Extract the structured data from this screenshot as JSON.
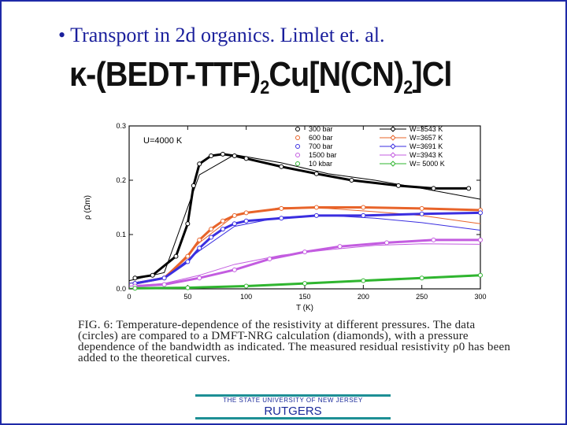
{
  "slide": {
    "title": "• Transport in 2d organics. Limlet et. al.",
    "formula_prefix": "κ-(BEDT-TTF)",
    "formula_sub1": "2",
    "formula_mid": "Cu[N(CN)",
    "formula_sub2": "2",
    "formula_suffix": "]Cl",
    "caption": "FIG. 6: Temperature-dependence of the resistivity at different pressures. The data (circles) are compared to a DMFT-NRG calculation (diamonds), with a pressure dependence of the bandwidth as indicated. The measured residual resistivity ρ0 has been added to the theoretical curves."
  },
  "footer": {
    "university": "THE STATE UNIVERSITY OF NEW JERSEY",
    "name": "RUTGERS"
  },
  "chart_data": {
    "type": "line",
    "title": "",
    "annotation": "U=4000 K",
    "xlabel": "T (K)",
    "ylabel": "ρ (Ωm)",
    "xlim": [
      0,
      300
    ],
    "ylim": [
      0,
      0.3
    ],
    "xticks": [
      "0",
      "50",
      "100",
      "150",
      "200",
      "250",
      "300"
    ],
    "yticks": [
      "0.0",
      "0.1",
      "0.2",
      "0.3"
    ],
    "data_legend": [
      "300 bar",
      "600 bar",
      "700 bar",
      "1500 bar",
      "10 kbar"
    ],
    "theory_legend": [
      "W=3543 K",
      "W=3657 K",
      "W=3691 K",
      "W=3943 K",
      "W= 5000 K"
    ],
    "series": [
      {
        "name": "300 bar",
        "color": "#000000",
        "data_x": [
          5,
          20,
          40,
          50,
          55,
          60,
          70,
          80,
          90,
          100,
          130,
          160,
          190,
          230,
          260,
          290
        ],
        "data_y": [
          0.02,
          0.025,
          0.06,
          0.12,
          0.19,
          0.23,
          0.245,
          0.248,
          0.245,
          0.24,
          0.225,
          0.212,
          0.2,
          0.19,
          0.185,
          0.185
        ],
        "theory_x": [
          0,
          30,
          60,
          90,
          130,
          170,
          210,
          250,
          300
        ],
        "theory_y": [
          0.015,
          0.03,
          0.21,
          0.247,
          0.232,
          0.212,
          0.2,
          0.185,
          0.165
        ]
      },
      {
        "name": "600 bar",
        "color": "#e8642a",
        "data_x": [
          5,
          30,
          50,
          60,
          70,
          80,
          90,
          100,
          130,
          160,
          200,
          250,
          300
        ],
        "data_y": [
          0.01,
          0.02,
          0.06,
          0.09,
          0.11,
          0.125,
          0.135,
          0.14,
          0.148,
          0.15,
          0.15,
          0.148,
          0.145
        ],
        "theory_x": [
          0,
          30,
          60,
          90,
          130,
          170,
          210,
          250,
          300
        ],
        "theory_y": [
          0.01,
          0.02,
          0.085,
          0.135,
          0.15,
          0.148,
          0.142,
          0.135,
          0.12
        ]
      },
      {
        "name": "700 bar",
        "color": "#3a2ee0",
        "data_x": [
          5,
          30,
          50,
          60,
          70,
          80,
          90,
          100,
          130,
          160,
          200,
          250,
          300
        ],
        "data_y": [
          0.01,
          0.02,
          0.05,
          0.075,
          0.095,
          0.11,
          0.12,
          0.125,
          0.13,
          0.135,
          0.135,
          0.138,
          0.14
        ],
        "theory_x": [
          0,
          30,
          60,
          90,
          130,
          170,
          210,
          250,
          300
        ],
        "theory_y": [
          0.01,
          0.02,
          0.07,
          0.115,
          0.132,
          0.135,
          0.13,
          0.122,
          0.108
        ]
      },
      {
        "name": "1500 bar",
        "color": "#c35ce0",
        "data_x": [
          5,
          30,
          60,
          90,
          120,
          150,
          180,
          220,
          260,
          300
        ],
        "data_y": [
          0.005,
          0.008,
          0.02,
          0.035,
          0.055,
          0.068,
          0.078,
          0.085,
          0.09,
          0.09
        ],
        "theory_x": [
          0,
          30,
          60,
          90,
          130,
          170,
          210,
          250,
          300
        ],
        "theory_y": [
          0.005,
          0.01,
          0.025,
          0.045,
          0.062,
          0.072,
          0.08,
          0.083,
          0.082
        ]
      },
      {
        "name": "10 kbar",
        "color": "#2fb52f",
        "data_x": [
          5,
          50,
          100,
          150,
          200,
          250,
          300
        ],
        "data_y": [
          0.001,
          0.002,
          0.005,
          0.01,
          0.015,
          0.02,
          0.025
        ],
        "theory_x": [
          0,
          50,
          100,
          150,
          200,
          250,
          300
        ],
        "theory_y": [
          0.001,
          0.002,
          0.005,
          0.009,
          0.014,
          0.019,
          0.024
        ]
      }
    ]
  }
}
